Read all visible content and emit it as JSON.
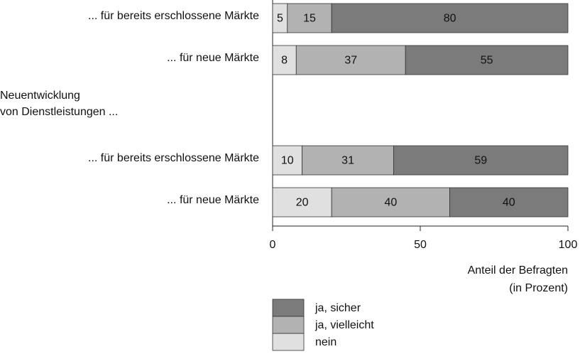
{
  "chart_data": {
    "type": "bar",
    "orientation": "horizontal",
    "stacked": true,
    "categories": [
      "... für bereits erschlossene Märkte",
      "... für neue Märkte",
      "... für bereits erschlossene Märkte",
      "... für neue Märkte"
    ],
    "group_label": [
      "Neuentwicklung",
      "von Dienstleistungen ..."
    ],
    "series": [
      {
        "name": "nein",
        "color": "#e0e0e0",
        "values": [
          5,
          8,
          10,
          20
        ]
      },
      {
        "name": "ja, vielleicht",
        "color": "#b2b2b2",
        "values": [
          15,
          37,
          31,
          40
        ]
      },
      {
        "name": "ja, sicher",
        "color": "#7b7b7b",
        "values": [
          80,
          55,
          59,
          40
        ]
      }
    ],
    "xlim": [
      0,
      100
    ],
    "xticks": [
      0,
      50,
      100
    ],
    "x_axis_label": [
      "Anteil der Befragten",
      "(in Prozent)"
    ]
  }
}
